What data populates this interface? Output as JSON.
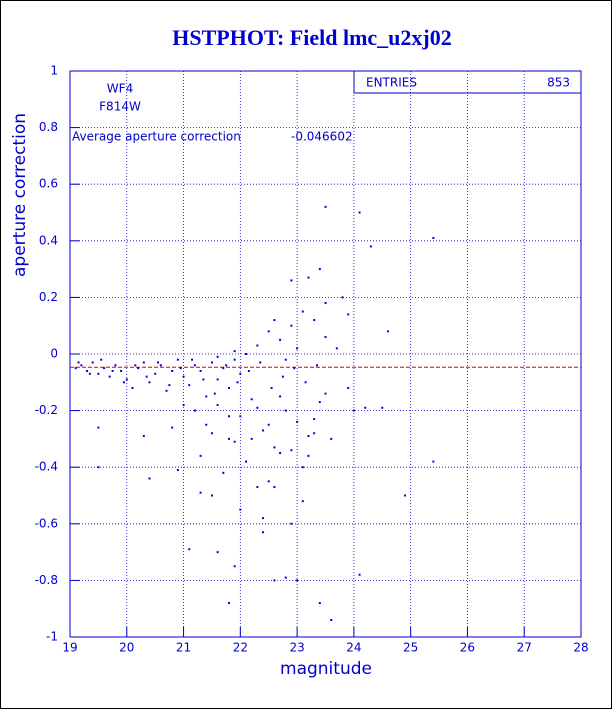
{
  "chart_data": {
    "type": "scatter",
    "title": "HSTPHOT: Field lmc_u2xj02",
    "x_label": "magnitude",
    "y_label": "aperture correction",
    "xlim": [
      19,
      28
    ],
    "ylim": [
      -1,
      1
    ],
    "xticks": [
      19,
      20,
      21,
      22,
      23,
      24,
      25,
      26,
      27,
      28
    ],
    "yticks": [
      -1,
      -0.8,
      -0.6,
      -0.4,
      -0.2,
      0,
      0.2,
      0.4,
      0.6,
      0.8,
      1
    ],
    "grid": true,
    "annotations": [
      "WF4",
      "F814W"
    ],
    "mean_label": "Average aperture correction",
    "mean": -0.046602,
    "mean_color": "#dd0000",
    "stats": {
      "label": "ENTRIES",
      "value": 853
    },
    "x": [
      19.1,
      19.2,
      19.3,
      19.4,
      19.5,
      19.6,
      19.7,
      19.8,
      19.9,
      20.0,
      20.1,
      20.2,
      20.3,
      20.4,
      20.5,
      20.6,
      20.7,
      20.8,
      20.9,
      21.0,
      21.1,
      21.2,
      21.3,
      21.4,
      21.5,
      21.6,
      21.7,
      21.8,
      21.9,
      22.0,
      19.15,
      19.35,
      19.55,
      19.75,
      19.95,
      20.15,
      20.35,
      20.55,
      20.75,
      20.95,
      21.15,
      21.35,
      21.55,
      21.75,
      21.95,
      22.15,
      22.35,
      22.55,
      22.75,
      22.95,
      23.15,
      23.35,
      19.5,
      19.5,
      20.3,
      20.4,
      20.9,
      21.1,
      21.3,
      21.5,
      21.6,
      21.8,
      21.9,
      22.3,
      22.4,
      22.6,
      22.8,
      22.9,
      23.0,
      23.4,
      23.6,
      23.1,
      22.7,
      22.2,
      21.8,
      22.5,
      23.3,
      23.6,
      22.3,
      22.5,
      22.7,
      22.9,
      23.1,
      23.3,
      23.5,
      23.8,
      23.9,
      23.2,
      22.9,
      23.4,
      23.5,
      24.1,
      24.3,
      25.4,
      24.6,
      23.0,
      22.6,
      22.8,
      23.7,
      23.5,
      22.1,
      21.9,
      21.6,
      24.2,
      24.5,
      24.1,
      24.9,
      25.4,
      24.0,
      23.9,
      21.2,
      21.4,
      21.6,
      21.8,
      22.0,
      22.2,
      22.4,
      22.6,
      22.8,
      23.0,
      23.2,
      23.4,
      21.3,
      21.7,
      22.1,
      22.5,
      22.9,
      23.3,
      21.5,
      22.3,
      22.7,
      23.1,
      21.9,
      22.0,
      22.6,
      23.2,
      20.8,
      21.0,
      22.4,
      23.5
    ],
    "series": [
      {
        "name": "aperture correction",
        "color": "#0000dd",
        "values": [
          -0.05,
          -0.04,
          -0.06,
          -0.03,
          -0.07,
          -0.05,
          -0.08,
          -0.04,
          -0.06,
          -0.09,
          -0.12,
          -0.05,
          -0.03,
          -0.1,
          -0.07,
          -0.04,
          -0.13,
          -0.06,
          -0.02,
          -0.08,
          -0.11,
          -0.04,
          -0.06,
          -0.15,
          -0.03,
          -0.09,
          -0.05,
          -0.12,
          -0.02,
          -0.07,
          -0.03,
          -0.07,
          -0.02,
          -0.06,
          -0.1,
          -0.04,
          -0.08,
          -0.03,
          -0.11,
          -0.05,
          -0.02,
          -0.09,
          -0.14,
          -0.04,
          -0.1,
          -0.06,
          -0.03,
          -0.12,
          -0.08,
          -0.05,
          -0.1,
          -0.04,
          -0.26,
          -0.4,
          -0.29,
          -0.44,
          -0.41,
          -0.69,
          -0.49,
          -0.5,
          -0.7,
          -0.88,
          -0.75,
          -0.47,
          -0.63,
          -0.8,
          -0.79,
          -0.6,
          -0.8,
          -0.88,
          -0.94,
          -0.52,
          -0.35,
          -0.3,
          -0.22,
          -0.25,
          -0.28,
          -0.3,
          0.03,
          0.08,
          0.05,
          0.1,
          0.15,
          0.12,
          0.18,
          0.2,
          0.14,
          0.27,
          0.26,
          0.3,
          0.52,
          0.5,
          0.38,
          0.41,
          0.08,
          0.02,
          0.12,
          -0.02,
          0.02,
          0.06,
          0.0,
          0.01,
          -0.01,
          -0.19,
          -0.19,
          -0.78,
          -0.5,
          -0.38,
          -0.2,
          -0.12,
          -0.2,
          -0.25,
          -0.18,
          -0.3,
          -0.22,
          -0.16,
          -0.27,
          -0.33,
          -0.2,
          -0.24,
          -0.29,
          -0.17,
          -0.36,
          -0.42,
          -0.38,
          -0.45,
          -0.34,
          -0.23,
          -0.28,
          -0.19,
          -0.15,
          -0.4,
          -0.31,
          -0.55,
          -0.47,
          -0.36,
          -0.26,
          -0.18,
          -0.58,
          -0.14
        ]
      }
    ]
  }
}
